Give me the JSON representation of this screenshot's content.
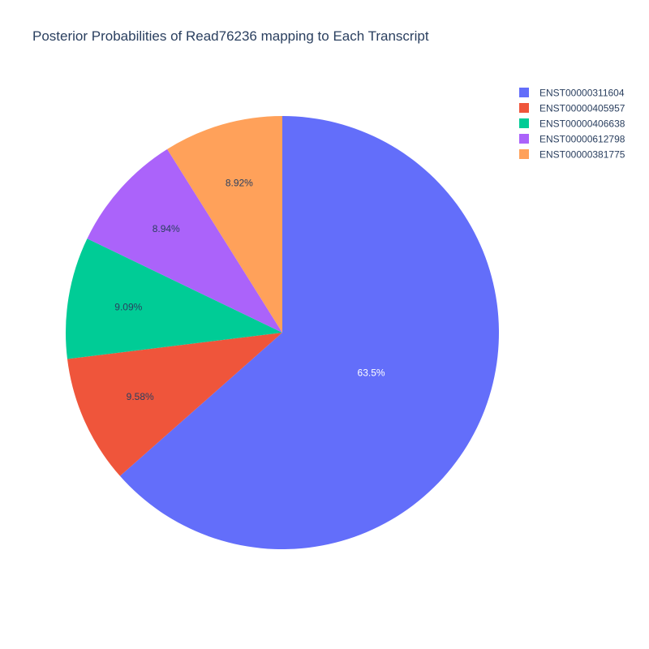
{
  "chart_data": {
    "type": "pie",
    "title": "Posterior Probabilities of Read76236 mapping to Each Transcript",
    "labels": [
      "ENST00000311604",
      "ENST00000405957",
      "ENST00000406638",
      "ENST00000612798",
      "ENST00000381775"
    ],
    "values": [
      63.5,
      9.58,
      9.09,
      8.94,
      8.92
    ],
    "value_labels": [
      "63.5%",
      "9.58%",
      "9.09%",
      "8.94%",
      "8.92%"
    ],
    "colors": [
      "#636efa",
      "#ef553b",
      "#00cc96",
      "#ab63fa",
      "#ffa15a"
    ],
    "label_colors": [
      "#ffffff",
      "#2a3f5f",
      "#2a3f5f",
      "#2a3f5f",
      "#2a3f5f"
    ],
    "direction": "clockwise",
    "start": "top",
    "legend_position": "top-right"
  }
}
